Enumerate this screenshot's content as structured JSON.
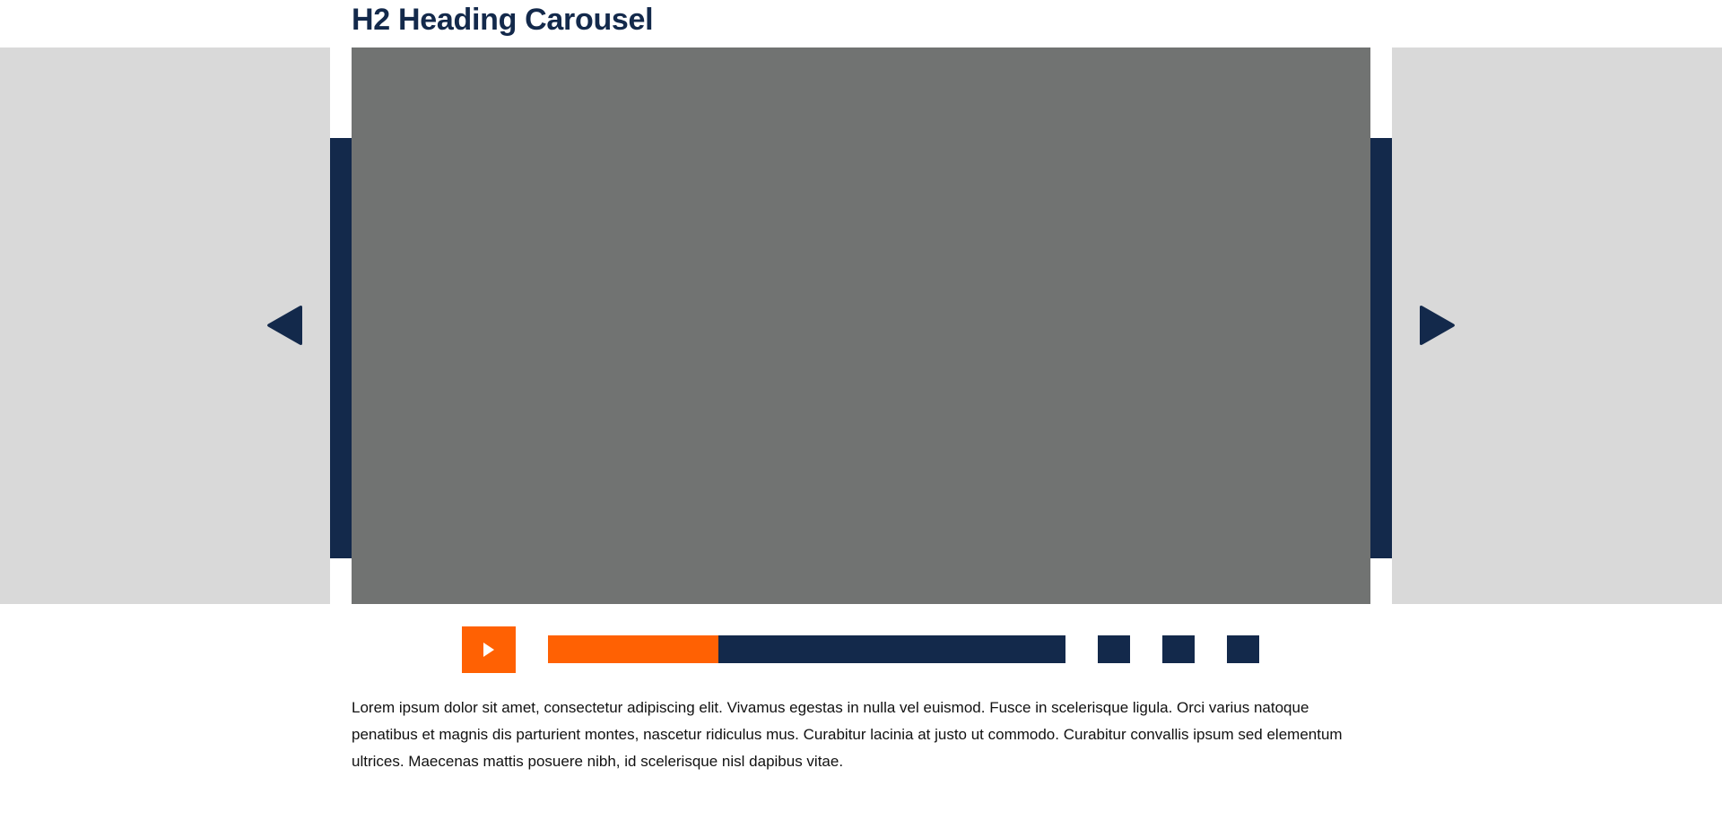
{
  "heading": "H2 Heading Carousel",
  "carousel": {
    "prev_icon": "triangle-left-icon",
    "next_icon": "triangle-right-icon",
    "play_icon": "play-icon",
    "progress": 0.33,
    "indicator_count": 3
  },
  "caption": "Lorem ipsum dolor sit amet, consectetur adipiscing elit. Vivamus egestas in nulla vel euismod. Fusce in scelerisque ligula. Orci varius natoque penatibus et magnis dis parturient montes, nascetur ridiculus mus. Curabitur lacinia at justo ut commodo. Curabitur convallis ipsum sed elementum ultrices. Maecenas mattis posuere nibh, id scelerisque nisl dapibus vitae.",
  "colors": {
    "navy": "#13294b",
    "orange": "#ff6103",
    "slide_gray": "#717372",
    "side_gray": "#d9d9d9"
  }
}
